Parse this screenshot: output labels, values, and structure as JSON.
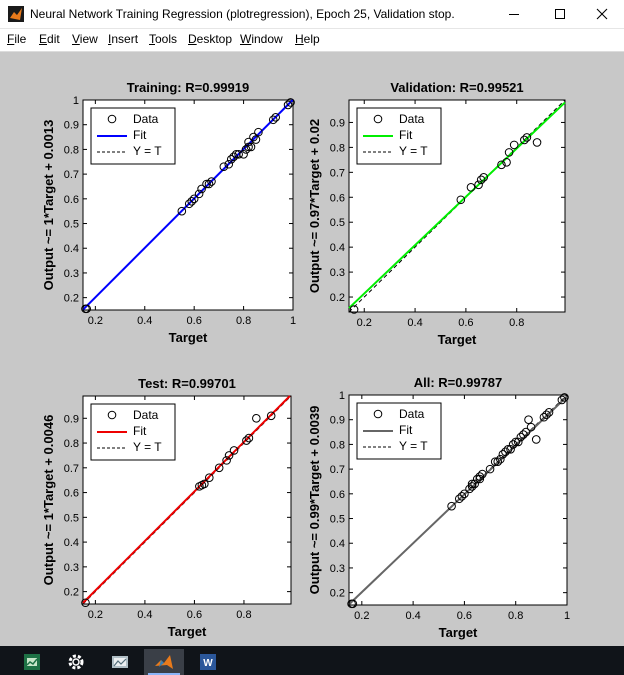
{
  "window": {
    "title": "Neural Network Training Regression (plotregression), Epoch 25, Validation stop."
  },
  "menu": [
    {
      "u": "F",
      "rest": "ile"
    },
    {
      "u": "E",
      "rest": "dit"
    },
    {
      "u": "V",
      "rest": "iew"
    },
    {
      "u": "I",
      "rest": "nsert"
    },
    {
      "u": "T",
      "rest": "ools"
    },
    {
      "u": "D",
      "rest": "esktop"
    },
    {
      "u": "W",
      "rest": "indow"
    },
    {
      "u": "H",
      "rest": "elp"
    }
  ],
  "taskbar": {
    "icons": [
      "spreadsheet-app-icon",
      "settings-gear-icon",
      "image-viewer-app-icon",
      "matlab-app-icon",
      "word-app-icon"
    ]
  },
  "chart_data": [
    {
      "type": "scatter",
      "title": "Training: R=0.99919",
      "xlabel": "Target",
      "ylabel": "Output ~= 1*Target + 0.0013",
      "xlim": [
        0.15,
        1.0
      ],
      "ylim": [
        0.15,
        1.0
      ],
      "xticks": [
        0.2,
        0.4,
        0.6,
        0.8,
        1.0
      ],
      "xtick_labels": [
        "0.2",
        "0.4",
        "0.6",
        "0.8",
        "1"
      ],
      "yticks": [
        0.2,
        0.3,
        0.4,
        0.5,
        0.6,
        0.7,
        0.8,
        0.9,
        1.0
      ],
      "ytick_labels": [
        "0.2",
        "0.3",
        "0.4",
        "0.5",
        "0.6",
        "0.7",
        "0.8",
        "0.9",
        "1"
      ],
      "fit": {
        "slope": 1.0,
        "intercept": 0.0013,
        "color": "#0000ff"
      },
      "legend": [
        "Data",
        "Fit",
        "Y = T"
      ],
      "legend_position": "top-left",
      "x": [
        0.16,
        0.165,
        0.55,
        0.58,
        0.59,
        0.6,
        0.62,
        0.63,
        0.65,
        0.66,
        0.67,
        0.72,
        0.74,
        0.75,
        0.76,
        0.77,
        0.78,
        0.8,
        0.81,
        0.82,
        0.82,
        0.83,
        0.84,
        0.85,
        0.86,
        0.92,
        0.93,
        0.98,
        0.99
      ],
      "y": [
        0.155,
        0.155,
        0.55,
        0.58,
        0.59,
        0.6,
        0.62,
        0.64,
        0.66,
        0.66,
        0.67,
        0.73,
        0.74,
        0.76,
        0.77,
        0.78,
        0.78,
        0.78,
        0.8,
        0.81,
        0.83,
        0.81,
        0.85,
        0.84,
        0.87,
        0.92,
        0.93,
        0.98,
        0.99
      ]
    },
    {
      "type": "scatter",
      "title": "Validation: R=0.99521",
      "xlabel": "Target",
      "ylabel": "Output ~= 0.97*Target + 0.02",
      "xlim": [
        0.14,
        0.99
      ],
      "ylim": [
        0.14,
        0.99
      ],
      "xticks": [
        0.2,
        0.4,
        0.6,
        0.8
      ],
      "xtick_labels": [
        "0.2",
        "0.4",
        "0.6",
        "0.8"
      ],
      "yticks": [
        0.2,
        0.3,
        0.4,
        0.5,
        0.6,
        0.7,
        0.8,
        0.9
      ],
      "ytick_labels": [
        "0.2",
        "0.3",
        "0.4",
        "0.5",
        "0.6",
        "0.7",
        "0.8",
        "0.9"
      ],
      "fit": {
        "slope": 0.97,
        "intercept": 0.02,
        "color": "#00ee00"
      },
      "legend": [
        "Data",
        "Fit",
        "Y = T"
      ],
      "legend_position": "top-left",
      "x": [
        0.16,
        0.58,
        0.62,
        0.65,
        0.66,
        0.67,
        0.74,
        0.76,
        0.77,
        0.79,
        0.83,
        0.84,
        0.88
      ],
      "y": [
        0.15,
        0.59,
        0.64,
        0.65,
        0.67,
        0.68,
        0.73,
        0.74,
        0.78,
        0.81,
        0.83,
        0.84,
        0.82
      ]
    },
    {
      "type": "scatter",
      "title": "Test: R=0.99701",
      "xlabel": "Target",
      "ylabel": "Output ~= 1*Target + 0.0046",
      "xlim": [
        0.15,
        0.99
      ],
      "ylim": [
        0.15,
        0.99
      ],
      "xticks": [
        0.2,
        0.4,
        0.6,
        0.8
      ],
      "xtick_labels": [
        "0.2",
        "0.4",
        "0.6",
        "0.8"
      ],
      "yticks": [
        0.2,
        0.3,
        0.4,
        0.5,
        0.6,
        0.7,
        0.8,
        0.9
      ],
      "ytick_labels": [
        "0.2",
        "0.3",
        "0.4",
        "0.5",
        "0.6",
        "0.7",
        "0.8",
        "0.9"
      ],
      "fit": {
        "slope": 1.0,
        "intercept": 0.0046,
        "color": "#ee0000"
      },
      "legend": [
        "Data",
        "Fit",
        "Y = T"
      ],
      "legend_position": "top-left",
      "x": [
        0.16,
        0.62,
        0.63,
        0.64,
        0.66,
        0.7,
        0.73,
        0.74,
        0.76,
        0.81,
        0.82,
        0.85,
        0.91
      ],
      "y": [
        0.155,
        0.625,
        0.63,
        0.635,
        0.66,
        0.7,
        0.73,
        0.75,
        0.77,
        0.81,
        0.82,
        0.9,
        0.91
      ]
    },
    {
      "type": "scatter",
      "title": "All: R=0.99787",
      "xlabel": "Target",
      "ylabel": "Output ~= 0.99*Target + 0.0039",
      "xlim": [
        0.15,
        1.0
      ],
      "ylim": [
        0.15,
        1.0
      ],
      "xticks": [
        0.2,
        0.4,
        0.6,
        0.8,
        1.0
      ],
      "xtick_labels": [
        "0.2",
        "0.4",
        "0.6",
        "0.8",
        "1"
      ],
      "yticks": [
        0.2,
        0.3,
        0.4,
        0.5,
        0.6,
        0.7,
        0.8,
        0.9,
        1.0
      ],
      "ytick_labels": [
        "0.2",
        "0.3",
        "0.4",
        "0.5",
        "0.6",
        "0.7",
        "0.8",
        "0.9",
        "1"
      ],
      "fit": {
        "slope": 0.99,
        "intercept": 0.0039,
        "color": "#666666"
      },
      "legend": [
        "Data",
        "Fit",
        "Y = T"
      ],
      "legend_position": "top-left",
      "x": [
        0.16,
        0.165,
        0.55,
        0.58,
        0.59,
        0.6,
        0.62,
        0.63,
        0.63,
        0.64,
        0.65,
        0.66,
        0.66,
        0.67,
        0.7,
        0.72,
        0.73,
        0.74,
        0.75,
        0.76,
        0.77,
        0.78,
        0.79,
        0.8,
        0.81,
        0.82,
        0.83,
        0.84,
        0.85,
        0.86,
        0.88,
        0.91,
        0.92,
        0.93,
        0.98,
        0.99
      ],
      "y": [
        0.155,
        0.155,
        0.55,
        0.58,
        0.59,
        0.6,
        0.62,
        0.63,
        0.64,
        0.64,
        0.66,
        0.66,
        0.67,
        0.68,
        0.7,
        0.73,
        0.73,
        0.74,
        0.76,
        0.77,
        0.78,
        0.78,
        0.8,
        0.81,
        0.81,
        0.83,
        0.84,
        0.85,
        0.9,
        0.87,
        0.82,
        0.91,
        0.92,
        0.93,
        0.98,
        0.99
      ]
    }
  ]
}
